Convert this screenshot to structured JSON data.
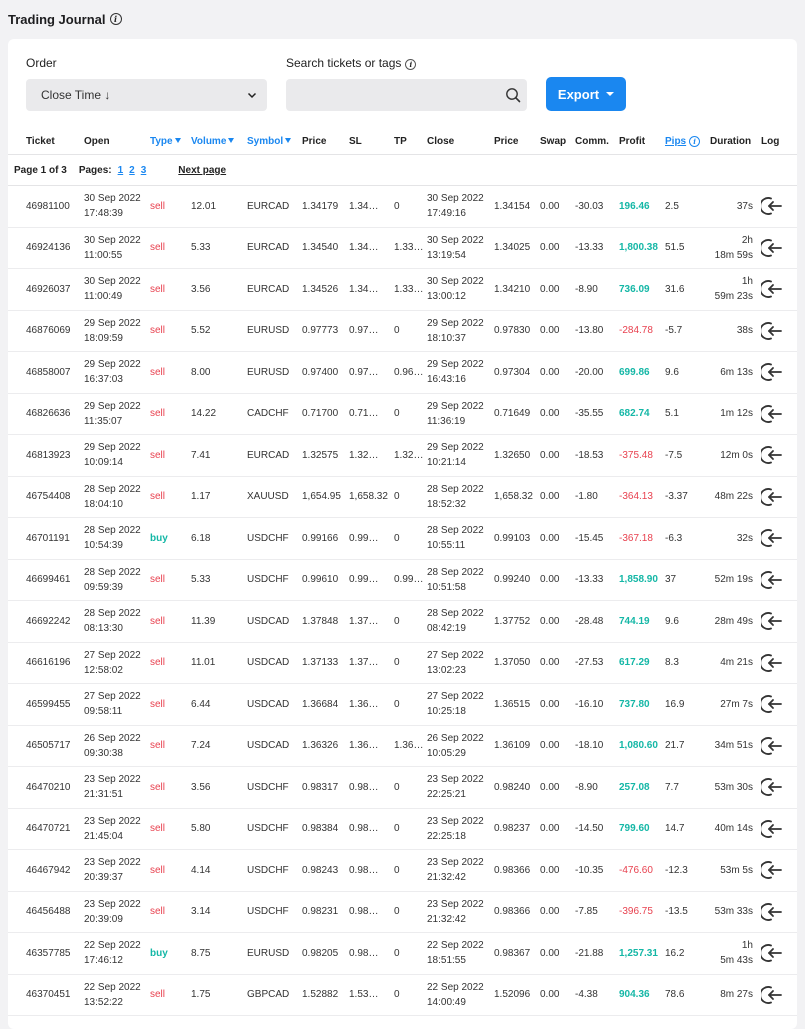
{
  "header": {
    "title": "Trading Journal"
  },
  "filters": {
    "order_label": "Order",
    "order_value": "Close Time ↓",
    "search_label": "Search tickets or tags",
    "search_placeholder": "",
    "export_label": "Export"
  },
  "columns": {
    "ticket": "Ticket",
    "open": "Open",
    "type": "Type",
    "volume": "Volume",
    "symbol": "Symbol",
    "price": "Price",
    "sl": "SL",
    "tp": "TP",
    "close": "Close",
    "close_price": "Price",
    "swap": "Swap",
    "comm": "Comm.",
    "profit": "Profit",
    "pips": "Pips",
    "duration": "Duration",
    "log": "Log"
  },
  "pager": {
    "page_info": "Page 1 of 3",
    "pages_label": "Pages:",
    "pages": [
      "1",
      "2",
      "3"
    ],
    "next": "Next page"
  },
  "colors": {
    "accent": "#1a87f0",
    "sell": "#e8414f",
    "buy": "#14b7a6",
    "profit_pos": "#14b7a6",
    "profit_neg": "#e8414f"
  },
  "trades": [
    {
      "ticket": "46981100",
      "open_date": "30 Sep 2022",
      "open_time": "17:48:39",
      "type": "sell",
      "volume": "12.01",
      "symbol": "EURCAD",
      "price": "1.34179",
      "sl": "1.34…",
      "tp": "0",
      "close_date": "30 Sep 2022",
      "close_time": "17:49:16",
      "close_price": "1.34154",
      "swap": "0.00",
      "comm": "-30.03",
      "profit": "196.46",
      "pips": "2.5",
      "dur1": "",
      "dur2": "37s"
    },
    {
      "ticket": "46924136",
      "open_date": "30 Sep 2022",
      "open_time": "11:00:55",
      "type": "sell",
      "volume": "5.33",
      "symbol": "EURCAD",
      "price": "1.34540",
      "sl": "1.34…",
      "tp": "1.33…",
      "close_date": "30 Sep 2022",
      "close_time": "13:19:54",
      "close_price": "1.34025",
      "swap": "0.00",
      "comm": "-13.33",
      "profit": "1,800.38",
      "pips": "51.5",
      "dur1": "2h",
      "dur2": "18m 59s"
    },
    {
      "ticket": "46926037",
      "open_date": "30 Sep 2022",
      "open_time": "11:00:49",
      "type": "sell",
      "volume": "3.56",
      "symbol": "EURCAD",
      "price": "1.34526",
      "sl": "1.34…",
      "tp": "1.33…",
      "close_date": "30 Sep 2022",
      "close_time": "13:00:12",
      "close_price": "1.34210",
      "swap": "0.00",
      "comm": "-8.90",
      "profit": "736.09",
      "pips": "31.6",
      "dur1": "1h",
      "dur2": "59m 23s"
    },
    {
      "ticket": "46876069",
      "open_date": "29 Sep 2022",
      "open_time": "18:09:59",
      "type": "sell",
      "volume": "5.52",
      "symbol": "EURUSD",
      "price": "0.97773",
      "sl": "0.97…",
      "tp": "0",
      "close_date": "29 Sep 2022",
      "close_time": "18:10:37",
      "close_price": "0.97830",
      "swap": "0.00",
      "comm": "-13.80",
      "profit": "-284.78",
      "pips": "-5.7",
      "dur1": "",
      "dur2": "38s"
    },
    {
      "ticket": "46858007",
      "open_date": "29 Sep 2022",
      "open_time": "16:37:03",
      "type": "sell",
      "volume": "8.00",
      "symbol": "EURUSD",
      "price": "0.97400",
      "sl": "0.97…",
      "tp": "0.96…",
      "close_date": "29 Sep 2022",
      "close_time": "16:43:16",
      "close_price": "0.97304",
      "swap": "0.00",
      "comm": "-20.00",
      "profit": "699.86",
      "pips": "9.6",
      "dur1": "",
      "dur2": "6m 13s"
    },
    {
      "ticket": "46826636",
      "open_date": "29 Sep 2022",
      "open_time": "11:35:07",
      "type": "sell",
      "volume": "14.22",
      "symbol": "CADCHF",
      "price": "0.71700",
      "sl": "0.71…",
      "tp": "0",
      "close_date": "29 Sep 2022",
      "close_time": "11:36:19",
      "close_price": "0.71649",
      "swap": "0.00",
      "comm": "-35.55",
      "profit": "682.74",
      "pips": "5.1",
      "dur1": "",
      "dur2": "1m 12s"
    },
    {
      "ticket": "46813923",
      "open_date": "29 Sep 2022",
      "open_time": "10:09:14",
      "type": "sell",
      "volume": "7.41",
      "symbol": "EURCAD",
      "price": "1.32575",
      "sl": "1.32…",
      "tp": "1.32…",
      "close_date": "29 Sep 2022",
      "close_time": "10:21:14",
      "close_price": "1.32650",
      "swap": "0.00",
      "comm": "-18.53",
      "profit": "-375.48",
      "pips": "-7.5",
      "dur1": "",
      "dur2": "12m 0s"
    },
    {
      "ticket": "46754408",
      "open_date": "28 Sep 2022",
      "open_time": "18:04:10",
      "type": "sell",
      "volume": "1.17",
      "symbol": "XAUUSD",
      "price": "1,654.95",
      "sl": "1,658.32",
      "tp": "0",
      "close_date": "28 Sep 2022",
      "close_time": "18:52:32",
      "close_price": "1,658.32",
      "swap": "0.00",
      "comm": "-1.80",
      "profit": "-364.13",
      "pips": "-3.37",
      "dur1": "",
      "dur2": "48m 22s"
    },
    {
      "ticket": "46701191",
      "open_date": "28 Sep 2022",
      "open_time": "10:54:39",
      "type": "buy",
      "volume": "6.18",
      "symbol": "USDCHF",
      "price": "0.99166",
      "sl": "0.99…",
      "tp": "0",
      "close_date": "28 Sep 2022",
      "close_time": "10:55:11",
      "close_price": "0.99103",
      "swap": "0.00",
      "comm": "-15.45",
      "profit": "-367.18",
      "pips": "-6.3",
      "dur1": "",
      "dur2": "32s"
    },
    {
      "ticket": "46699461",
      "open_date": "28 Sep 2022",
      "open_time": "09:59:39",
      "type": "sell",
      "volume": "5.33",
      "symbol": "USDCHF",
      "price": "0.99610",
      "sl": "0.99…",
      "tp": "0.99…",
      "close_date": "28 Sep 2022",
      "close_time": "10:51:58",
      "close_price": "0.99240",
      "swap": "0.00",
      "comm": "-13.33",
      "profit": "1,858.90",
      "pips": "37",
      "dur1": "",
      "dur2": "52m 19s"
    },
    {
      "ticket": "46692242",
      "open_date": "28 Sep 2022",
      "open_time": "08:13:30",
      "type": "sell",
      "volume": "11.39",
      "symbol": "USDCAD",
      "price": "1.37848",
      "sl": "1.37…",
      "tp": "0",
      "close_date": "28 Sep 2022",
      "close_time": "08:42:19",
      "close_price": "1.37752",
      "swap": "0.00",
      "comm": "-28.48",
      "profit": "744.19",
      "pips": "9.6",
      "dur1": "",
      "dur2": "28m 49s"
    },
    {
      "ticket": "46616196",
      "open_date": "27 Sep 2022",
      "open_time": "12:58:02",
      "type": "sell",
      "volume": "11.01",
      "symbol": "USDCAD",
      "price": "1.37133",
      "sl": "1.37…",
      "tp": "0",
      "close_date": "27 Sep 2022",
      "close_time": "13:02:23",
      "close_price": "1.37050",
      "swap": "0.00",
      "comm": "-27.53",
      "profit": "617.29",
      "pips": "8.3",
      "dur1": "",
      "dur2": "4m 21s"
    },
    {
      "ticket": "46599455",
      "open_date": "27 Sep 2022",
      "open_time": "09:58:11",
      "type": "sell",
      "volume": "6.44",
      "symbol": "USDCAD",
      "price": "1.36684",
      "sl": "1.36…",
      "tp": "0",
      "close_date": "27 Sep 2022",
      "close_time": "10:25:18",
      "close_price": "1.36515",
      "swap": "0.00",
      "comm": "-16.10",
      "profit": "737.80",
      "pips": "16.9",
      "dur1": "",
      "dur2": "27m 7s"
    },
    {
      "ticket": "46505717",
      "open_date": "26 Sep 2022",
      "open_time": "09:30:38",
      "type": "sell",
      "volume": "7.24",
      "symbol": "USDCAD",
      "price": "1.36326",
      "sl": "1.36…",
      "tp": "1.36…",
      "close_date": "26 Sep 2022",
      "close_time": "10:05:29",
      "close_price": "1.36109",
      "swap": "0.00",
      "comm": "-18.10",
      "profit": "1,080.60",
      "pips": "21.7",
      "dur1": "",
      "dur2": "34m 51s"
    },
    {
      "ticket": "46470210",
      "open_date": "23 Sep 2022",
      "open_time": "21:31:51",
      "type": "sell",
      "volume": "3.56",
      "symbol": "USDCHF",
      "price": "0.98317",
      "sl": "0.98…",
      "tp": "0",
      "close_date": "23 Sep 2022",
      "close_time": "22:25:21",
      "close_price": "0.98240",
      "swap": "0.00",
      "comm": "-8.90",
      "profit": "257.08",
      "pips": "7.7",
      "dur1": "",
      "dur2": "53m 30s"
    },
    {
      "ticket": "46470721",
      "open_date": "23 Sep 2022",
      "open_time": "21:45:04",
      "type": "sell",
      "volume": "5.80",
      "symbol": "USDCHF",
      "price": "0.98384",
      "sl": "0.98…",
      "tp": "0",
      "close_date": "23 Sep 2022",
      "close_time": "22:25:18",
      "close_price": "0.98237",
      "swap": "0.00",
      "comm": "-14.50",
      "profit": "799.60",
      "pips": "14.7",
      "dur1": "",
      "dur2": "40m 14s"
    },
    {
      "ticket": "46467942",
      "open_date": "23 Sep 2022",
      "open_time": "20:39:37",
      "type": "sell",
      "volume": "4.14",
      "symbol": "USDCHF",
      "price": "0.98243",
      "sl": "0.98…",
      "tp": "0",
      "close_date": "23 Sep 2022",
      "close_time": "21:32:42",
      "close_price": "0.98366",
      "swap": "0.00",
      "comm": "-10.35",
      "profit": "-476.60",
      "pips": "-12.3",
      "dur1": "",
      "dur2": "53m 5s"
    },
    {
      "ticket": "46456488",
      "open_date": "23 Sep 2022",
      "open_time": "20:39:09",
      "type": "sell",
      "volume": "3.14",
      "symbol": "USDCHF",
      "price": "0.98231",
      "sl": "0.98…",
      "tp": "0",
      "close_date": "23 Sep 2022",
      "close_time": "21:32:42",
      "close_price": "0.98366",
      "swap": "0.00",
      "comm": "-7.85",
      "profit": "-396.75",
      "pips": "-13.5",
      "dur1": "",
      "dur2": "53m 33s"
    },
    {
      "ticket": "46357785",
      "open_date": "22 Sep 2022",
      "open_time": "17:46:12",
      "type": "buy",
      "volume": "8.75",
      "symbol": "EURUSD",
      "price": "0.98205",
      "sl": "0.98…",
      "tp": "0",
      "close_date": "22 Sep 2022",
      "close_time": "18:51:55",
      "close_price": "0.98367",
      "swap": "0.00",
      "comm": "-21.88",
      "profit": "1,257.31",
      "pips": "16.2",
      "dur1": "1h",
      "dur2": "5m 43s"
    },
    {
      "ticket": "46370451",
      "open_date": "22 Sep 2022",
      "open_time": "13:52:22",
      "type": "sell",
      "volume": "1.75",
      "symbol": "GBPCAD",
      "price": "1.52882",
      "sl": "1.53…",
      "tp": "0",
      "close_date": "22 Sep 2022",
      "close_time": "14:00:49",
      "close_price": "1.52096",
      "swap": "0.00",
      "comm": "-4.38",
      "profit": "904.36",
      "pips": "78.6",
      "dur1": "",
      "dur2": "8m 27s"
    }
  ]
}
